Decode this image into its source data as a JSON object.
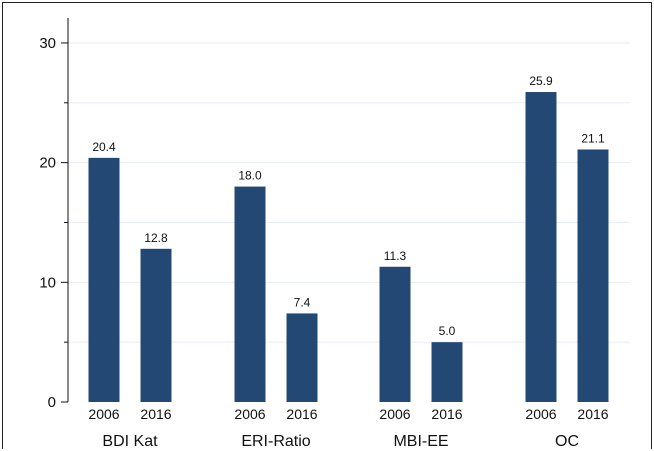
{
  "chart_data": {
    "type": "bar",
    "groups": [
      {
        "label": "BDI Kat",
        "bars": [
          {
            "x": "2006",
            "value": 20.4,
            "label": "20.4"
          },
          {
            "x": "2016",
            "value": 12.8,
            "label": "12.8"
          }
        ]
      },
      {
        "label": "ERI-Ratio",
        "bars": [
          {
            "x": "2006",
            "value": 18.0,
            "label": "18.0"
          },
          {
            "x": "2016",
            "value": 7.4,
            "label": "7.4"
          }
        ]
      },
      {
        "label": "MBI-EE",
        "bars": [
          {
            "x": "2006",
            "value": 11.3,
            "label": "11.3"
          },
          {
            "x": "2016",
            "value": 5.0,
            "label": "5.0"
          }
        ]
      },
      {
        "label": "OC",
        "bars": [
          {
            "x": "2006",
            "value": 25.9,
            "label": "25.9"
          },
          {
            "x": "2016",
            "value": 21.1,
            "label": "21.1"
          }
        ]
      }
    ],
    "y_ticks": [
      "0",
      "10",
      "20",
      "30"
    ],
    "ylim": [
      0,
      31.5
    ],
    "grid": true,
    "legend": "none",
    "bar_color": "#234873",
    "grid_color": "#e8eef3",
    "axis_color": "#111111"
  }
}
